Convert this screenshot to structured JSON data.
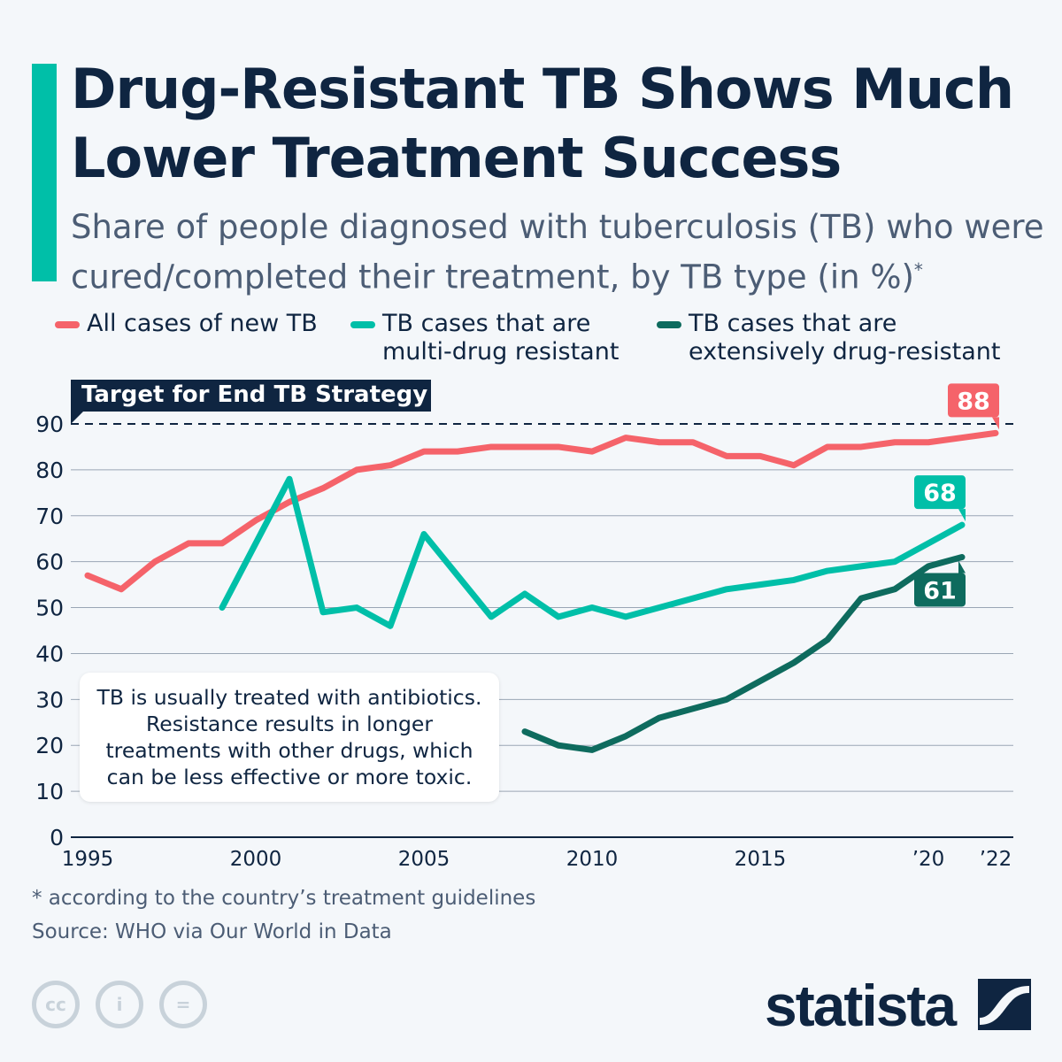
{
  "header": {
    "title": "Drug-Resistant TB Shows Much Lower Treatment Success",
    "subtitle": "Share of people diagnosed with tuberculosis (TB) who were cured/completed their treatment, by TB type (in %)",
    "subtitle_mark": "*",
    "accent_color": "#00bfa8"
  },
  "chart_data": {
    "type": "line",
    "title": "",
    "xlabel": "",
    "ylabel": "",
    "ylim": [
      0,
      90
    ],
    "yticks": [
      "0",
      "10",
      "20",
      "30",
      "40",
      "50",
      "60",
      "70",
      "80",
      "90"
    ],
    "xticks": [
      {
        "year": 1995,
        "label": "1995"
      },
      {
        "year": 2000,
        "label": "2000"
      },
      {
        "year": 2005,
        "label": "2005"
      },
      {
        "year": 2010,
        "label": "2010"
      },
      {
        "year": 2015,
        "label": "2015"
      },
      {
        "year": 2020,
        "label": "’20"
      },
      {
        "year": 2022,
        "label": "’22"
      }
    ],
    "grid": true,
    "legend_position": "top",
    "target": {
      "value": 90,
      "label": "Target for End TB Strategy"
    },
    "series": [
      {
        "name": "All cases of new TB",
        "color": "#f5636a",
        "x": [
          1995,
          1996,
          1997,
          1998,
          1999,
          2000,
          2001,
          2002,
          2003,
          2004,
          2005,
          2006,
          2007,
          2008,
          2009,
          2010,
          2011,
          2012,
          2013,
          2014,
          2015,
          2016,
          2017,
          2018,
          2019,
          2020,
          2021,
          2022
        ],
        "values": [
          57,
          54,
          60,
          64,
          64,
          69,
          73,
          76,
          80,
          81,
          84,
          84,
          85,
          85,
          85,
          84,
          87,
          86,
          86,
          83,
          83,
          81,
          85,
          85,
          86,
          86,
          87,
          88
        ],
        "end_label": "88"
      },
      {
        "name": "TB cases that are multi-drug resistant",
        "color": "#00bfa8",
        "x": [
          1999,
          2000,
          2001,
          2002,
          2003,
          2004,
          2005,
          2006,
          2007,
          2008,
          2009,
          2010,
          2011,
          2012,
          2013,
          2014,
          2015,
          2016,
          2017,
          2018,
          2019,
          2020,
          2021
        ],
        "values": [
          50,
          64,
          78,
          49,
          50,
          46,
          66,
          57,
          48,
          53,
          48,
          50,
          48,
          50,
          52,
          54,
          55,
          56,
          58,
          59,
          60,
          64,
          68
        ],
        "end_label": "68"
      },
      {
        "name": "TB cases that are extensively drug-resistant",
        "color": "#0e6b5e",
        "x": [
          2008,
          2009,
          2010,
          2011,
          2012,
          2013,
          2014,
          2015,
          2016,
          2017,
          2018,
          2019,
          2020,
          2021
        ],
        "values": [
          23,
          20,
          19,
          22,
          26,
          28,
          30,
          34,
          38,
          43,
          52,
          54,
          59,
          61
        ],
        "end_label": "61"
      }
    ]
  },
  "legend": [
    {
      "line1": "All cases of new TB",
      "line2": ""
    },
    {
      "line1": "TB cases that are",
      "line2": "multi-drug resistant"
    },
    {
      "line1": "TB cases that are",
      "line2": "extensively drug-resistant"
    }
  ],
  "annotation": "TB is usually treated with antibiotics. Resistance results in longer treatments with other drugs, which can be less effective or more toxic.",
  "footer": {
    "note": "* according to the country’s treatment guidelines",
    "source": "Source: WHO via Our World in Data",
    "license_icons": [
      "cc-icon",
      "attribution-icon",
      "no-derivatives-icon"
    ],
    "logo": "statista"
  }
}
